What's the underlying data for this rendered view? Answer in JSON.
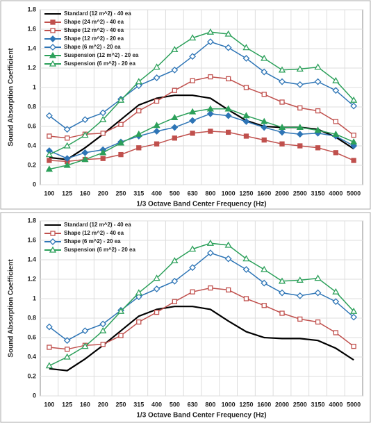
{
  "chart_data": [
    {
      "type": "line",
      "xlabel": "1/3 Octave Band Center Frequency (Hz)",
      "ylabel": "Sound Absorption Coefficient",
      "categories": [
        "100",
        "125",
        "160",
        "200",
        "250",
        "315",
        "400",
        "500",
        "630",
        "800",
        "1000",
        "1250",
        "1600",
        "2000",
        "2500",
        "3150",
        "4000",
        "5000"
      ],
      "ylim": [
        0,
        1.8
      ],
      "yticks": [
        0,
        0.2,
        0.4,
        0.6,
        0.8,
        1,
        1.2,
        1.4,
        1.6,
        1.8
      ],
      "grid": true,
      "legend": "upper left",
      "series": [
        {
          "name": "Standard (12 m^2) - 40 ea",
          "color": "#000000",
          "marker": "none",
          "filled": true,
          "values": [
            0.28,
            0.26,
            0.38,
            0.52,
            0.67,
            0.82,
            0.89,
            0.92,
            0.92,
            0.89,
            0.77,
            0.66,
            0.6,
            0.59,
            0.59,
            0.57,
            0.49,
            0.37
          ]
        },
        {
          "name": "Shape (24 m^2) - 40 ea",
          "color": "#c0504d",
          "marker": "square",
          "filled": true,
          "values": [
            0.25,
            0.24,
            0.26,
            0.27,
            0.31,
            0.38,
            0.42,
            0.48,
            0.53,
            0.55,
            0.54,
            0.5,
            0.46,
            0.42,
            0.4,
            0.38,
            0.33,
            0.25
          ]
        },
        {
          "name": "Shape (12 m^2) - 40 ea",
          "color": "#c0504d",
          "marker": "square",
          "filled": false,
          "values": [
            0.5,
            0.48,
            0.52,
            0.53,
            0.62,
            0.76,
            0.86,
            0.97,
            1.07,
            1.11,
            1.09,
            1.0,
            0.93,
            0.85,
            0.79,
            0.76,
            0.65,
            0.51
          ]
        },
        {
          "name": "Shape (12 m^2) - 20 ea",
          "color": "#2e75b6",
          "marker": "diamond",
          "filled": true,
          "values": [
            0.35,
            0.27,
            0.33,
            0.36,
            0.44,
            0.5,
            0.55,
            0.59,
            0.66,
            0.73,
            0.71,
            0.65,
            0.59,
            0.54,
            0.52,
            0.53,
            0.5,
            0.4
          ]
        },
        {
          "name": "Shape (6 m^2) - 20 ea",
          "color": "#2e75b6",
          "marker": "diamond",
          "filled": false,
          "values": [
            0.71,
            0.57,
            0.67,
            0.74,
            0.88,
            1.02,
            1.1,
            1.18,
            1.32,
            1.47,
            1.41,
            1.3,
            1.16,
            1.06,
            1.03,
            1.06,
            0.97,
            0.81
          ]
        },
        {
          "name": "Suspension (12 m^2) - 20 ea",
          "color": "#2ca05a",
          "marker": "triangle",
          "filled": true,
          "values": [
            0.16,
            0.2,
            0.26,
            0.33,
            0.43,
            0.52,
            0.61,
            0.69,
            0.75,
            0.78,
            0.78,
            0.71,
            0.65,
            0.59,
            0.59,
            0.56,
            0.52,
            0.44
          ]
        },
        {
          "name": "Suspension (6 m^2) - 20 ea",
          "color": "#2ca05a",
          "marker": "triangle",
          "filled": false,
          "values": [
            0.31,
            0.4,
            0.51,
            0.67,
            0.87,
            1.06,
            1.21,
            1.39,
            1.51,
            1.57,
            1.55,
            1.41,
            1.3,
            1.18,
            1.19,
            1.21,
            1.07,
            0.87
          ]
        }
      ]
    },
    {
      "type": "line",
      "xlabel": "1/3 Octave Band Center Frequency (Hz)",
      "ylabel": "Sound Absorption Coefficient",
      "categories": [
        "100",
        "125",
        "160",
        "200",
        "250",
        "315",
        "400",
        "500",
        "630",
        "800",
        "1000",
        "1250",
        "1600",
        "2000",
        "2500",
        "3150",
        "4000",
        "5000"
      ],
      "ylim": [
        0,
        1.8
      ],
      "yticks": [
        0,
        0.2,
        0.4,
        0.6,
        0.8,
        1,
        1.2,
        1.4,
        1.6,
        1.8
      ],
      "grid": true,
      "legend": "upper left",
      "series": [
        {
          "name": "Standard (12 m^2) - 40 ea",
          "color": "#000000",
          "marker": "none",
          "filled": true,
          "values": [
            0.28,
            0.26,
            0.38,
            0.52,
            0.67,
            0.82,
            0.89,
            0.92,
            0.92,
            0.89,
            0.77,
            0.66,
            0.6,
            0.59,
            0.59,
            0.57,
            0.49,
            0.37
          ]
        },
        {
          "name": "Shape (12 m^2) - 40 ea",
          "color": "#c0504d",
          "marker": "square",
          "filled": false,
          "values": [
            0.5,
            0.48,
            0.52,
            0.53,
            0.62,
            0.76,
            0.86,
            0.97,
            1.07,
            1.11,
            1.09,
            1.0,
            0.93,
            0.85,
            0.79,
            0.76,
            0.65,
            0.51
          ]
        },
        {
          "name": "Shape (6 m^2) - 20 ea",
          "color": "#2e75b6",
          "marker": "diamond",
          "filled": false,
          "values": [
            0.71,
            0.57,
            0.67,
            0.74,
            0.88,
            1.02,
            1.1,
            1.18,
            1.32,
            1.47,
            1.41,
            1.3,
            1.16,
            1.06,
            1.03,
            1.06,
            0.97,
            0.81
          ]
        },
        {
          "name": "Suspension (6 m^2) - 20 ea",
          "color": "#2ca05a",
          "marker": "triangle",
          "filled": false,
          "values": [
            0.31,
            0.4,
            0.51,
            0.67,
            0.87,
            1.06,
            1.21,
            1.39,
            1.51,
            1.57,
            1.55,
            1.41,
            1.3,
            1.18,
            1.19,
            1.21,
            1.07,
            0.87
          ]
        }
      ]
    }
  ]
}
